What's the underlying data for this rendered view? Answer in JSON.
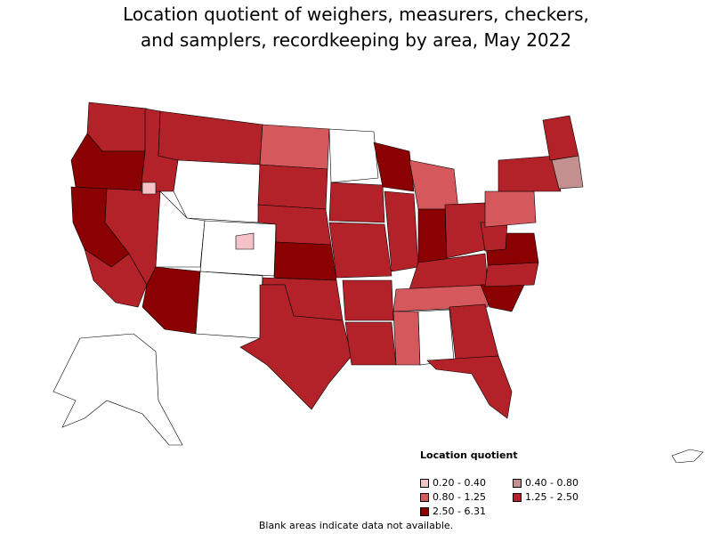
{
  "title": {
    "line1": "Location quotient of weighers, measurers, checkers,",
    "line2": "and samplers, recordkeeping by area, May 2022"
  },
  "legend": {
    "title": "Location quotient",
    "items": [
      {
        "label": "0.20 - 0.40",
        "color": "#f4c2c7"
      },
      {
        "label": "0.40 - 0.80",
        "color": "#c4908f"
      },
      {
        "label": "0.80 - 1.25",
        "color": "#d4585c"
      },
      {
        "label": "1.25 - 2.50",
        "color": "#b22228"
      },
      {
        "label": "2.50 - 6.31",
        "color": "#8b0000"
      }
    ]
  },
  "note": "Blank areas indicate data not available.",
  "colors": {
    "blank": "#ffffff",
    "q1": "#f4c2c7",
    "q2": "#c4908f",
    "q3": "#d4585c",
    "q4": "#b22228",
    "q5": "#8b0000"
  }
}
